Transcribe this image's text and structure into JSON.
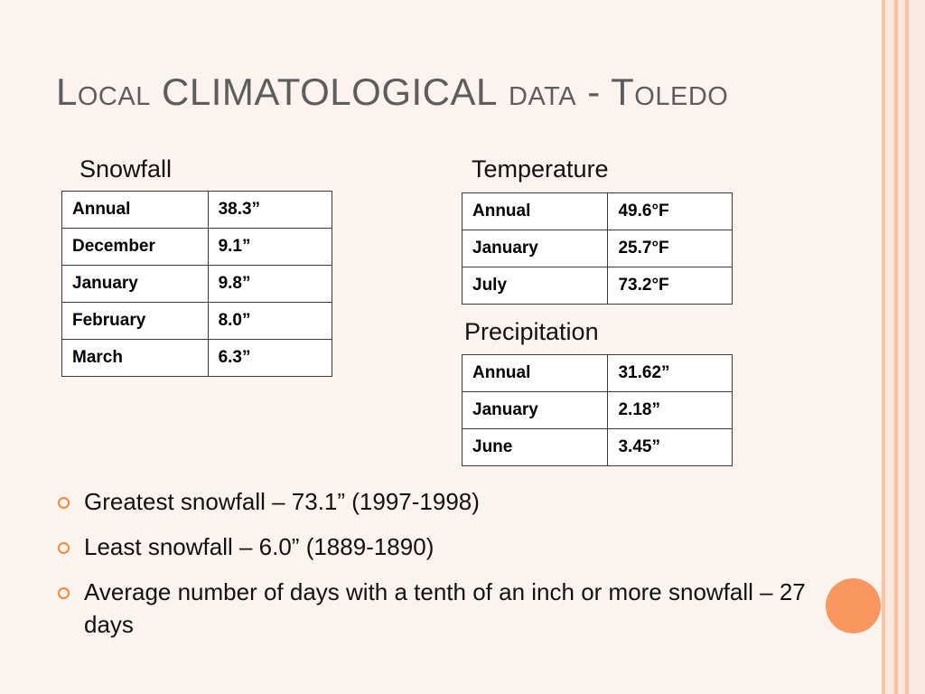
{
  "title": {
    "part1": "Local ",
    "part2": "CLIMATOLOGICAL",
    "part3": " data - Toledo"
  },
  "snowfall": {
    "label": "Snowfall",
    "rows": [
      {
        "month": "Annual",
        "value": "38.3”"
      },
      {
        "month": "December",
        "value": "9.1”"
      },
      {
        "month": "January",
        "value": "9.8”"
      },
      {
        "month": "February",
        "value": "8.0”"
      },
      {
        "month": "March",
        "value": "6.3”"
      }
    ]
  },
  "temperature": {
    "label": "Temperature",
    "rows": [
      {
        "month": "Annual",
        "value": "49.6°F"
      },
      {
        "month": "January",
        "value": "25.7°F"
      },
      {
        "month": "July",
        "value": "73.2°F"
      }
    ]
  },
  "precipitation": {
    "label": "Precipitation",
    "rows": [
      {
        "month": "Annual",
        "value": "31.62”"
      },
      {
        "month": "January",
        "value": "2.18”"
      },
      {
        "month": "June",
        "value": "3.45”"
      }
    ]
  },
  "bullets": [
    "Greatest snowfall – 73.1” (1997-1998)",
    "Least snowfall – 6.0” (1889-1890)",
    "Average number of days with a tenth of an inch or more snowfall – 27 days"
  ],
  "colors": {
    "background": "#fdf3ee",
    "accent": "#fa9761",
    "bullet": "#f08a3e",
    "title": "#5d5d5d"
  }
}
